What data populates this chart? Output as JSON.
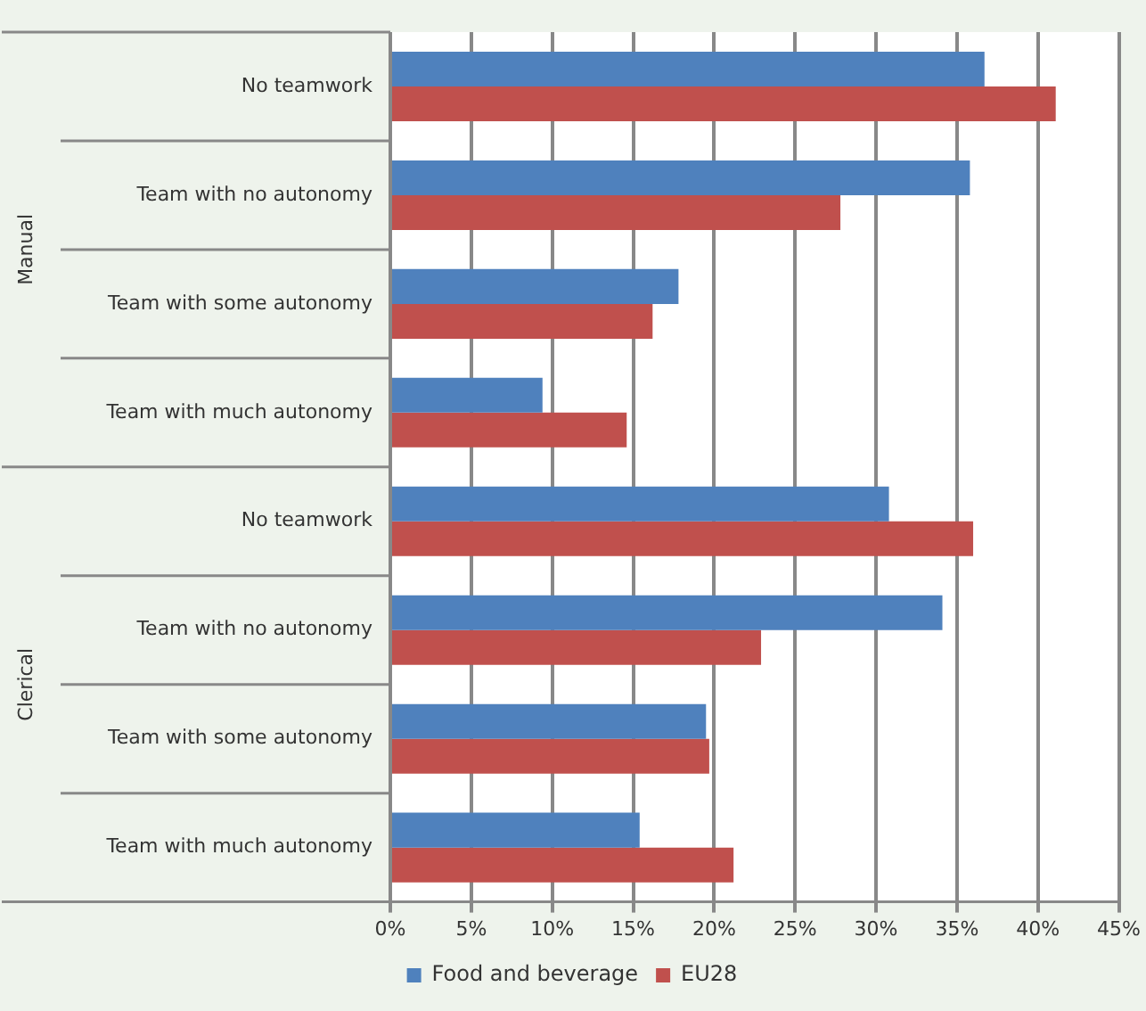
{
  "chart_data": {
    "type": "bar",
    "orientation": "horizontal",
    "categories": [
      "No teamwork",
      "Team with no autonomy",
      "Team with some autonomy",
      "Team with much autonomy",
      "No teamwork",
      "Team with no autonomy",
      "Team with some autonomy",
      "Team with much autonomy"
    ],
    "series": [
      {
        "name": "Food and beverage",
        "color": "#4f81bd",
        "values": [
          36.7,
          35.8,
          17.8,
          9.4,
          30.8,
          34.1,
          19.5,
          15.4
        ]
      },
      {
        "name": "EU28",
        "color": "#c0504d",
        "values": [
          41.1,
          27.8,
          16.2,
          14.6,
          36.0,
          22.9,
          19.7,
          21.2
        ]
      }
    ],
    "xlim": [
      0,
      45
    ],
    "xticks": [
      {
        "value": 0,
        "label": "0%"
      },
      {
        "value": 5,
        "label": "5%"
      },
      {
        "value": 10,
        "label": "10%"
      },
      {
        "value": 15,
        "label": "15%"
      },
      {
        "value": 20,
        "label": "20%"
      },
      {
        "value": 25,
        "label": "25%"
      },
      {
        "value": 30,
        "label": "30%"
      },
      {
        "value": 35,
        "label": "35%"
      },
      {
        "value": 40,
        "label": "40%"
      },
      {
        "value": 45,
        "label": "45%"
      }
    ],
    "annotations": [
      "Manual",
      "Clerical"
    ],
    "grid": "x",
    "legend": "bottom"
  }
}
